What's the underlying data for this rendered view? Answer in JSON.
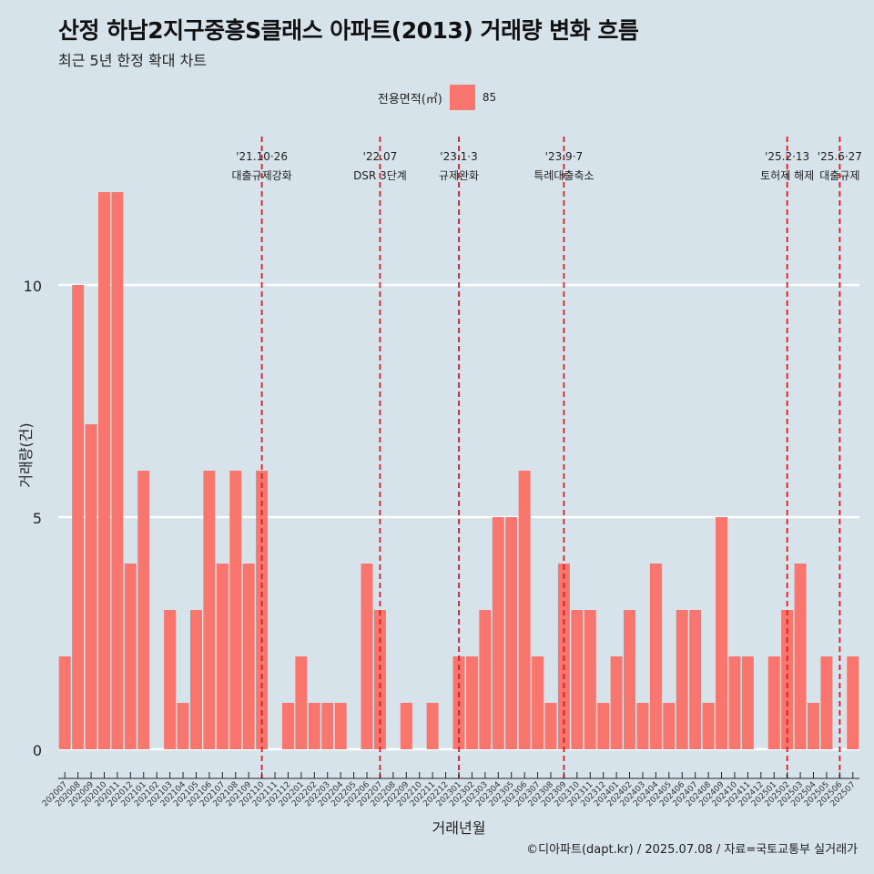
{
  "title": "산정 하남2지구중흥S클래스 아파트(2013) 거래량 변화 흐름",
  "subtitle": "최근 5년 한정 확대 차트",
  "legend": {
    "title": "전용면적(㎡)",
    "label": "85",
    "color": "#f8766d"
  },
  "caption": "©디아파트(dapt.kr) / 2025.07.08 / 자료=국토교통부 실거래가",
  "colors": {
    "background": "#d6e3eb",
    "bar": "#f8766d",
    "event_line": "#e3181d"
  },
  "chart_data": {
    "type": "bar",
    "xlabel": "거래년월",
    "ylabel": "거래량(건)",
    "ylim": [
      0,
      12
    ],
    "yticks": [
      0,
      5,
      10
    ],
    "grid": true,
    "legend_position": "top",
    "categories": [
      "202007",
      "202008",
      "202009",
      "202010",
      "202011",
      "202012",
      "202101",
      "202102",
      "202103",
      "202104",
      "202105",
      "202106",
      "202107",
      "202108",
      "202109",
      "202110",
      "202111",
      "202112",
      "202201",
      "202202",
      "202203",
      "202204",
      "202205",
      "202206",
      "202207",
      "202208",
      "202209",
      "202210",
      "202211",
      "202212",
      "202301",
      "202302",
      "202303",
      "202304",
      "202305",
      "202306",
      "202307",
      "202308",
      "202309",
      "202310",
      "202311",
      "202312",
      "202401",
      "202402",
      "202403",
      "202404",
      "202405",
      "202406",
      "202407",
      "202408",
      "202409",
      "202410",
      "202411",
      "202412",
      "202501",
      "202502",
      "202503",
      "202504",
      "202505",
      "202506",
      "202507"
    ],
    "series": [
      {
        "name": "85",
        "values": [
          2,
          10,
          7,
          12,
          12,
          4,
          6,
          0,
          3,
          1,
          3,
          6,
          4,
          6,
          4,
          6,
          0,
          1,
          2,
          1,
          1,
          1,
          0,
          4,
          3,
          0,
          1,
          0,
          1,
          0,
          2,
          2,
          3,
          5,
          5,
          6,
          2,
          1,
          4,
          3,
          3,
          1,
          2,
          3,
          1,
          4,
          1,
          3,
          3,
          1,
          5,
          2,
          2,
          0,
          2,
          3,
          4,
          1,
          2,
          0,
          2
        ]
      }
    ],
    "annotations": [
      {
        "category": "202110",
        "line1": "'21.10·26",
        "line2": "대출규제강화"
      },
      {
        "category": "202207",
        "line1": "'22.07",
        "line2": "DSR 3단계"
      },
      {
        "category": "202301",
        "line1": "'23.1·3",
        "line2": "규제완화"
      },
      {
        "category": "202309",
        "line1": "'23.9·7",
        "line2": "특례대출축소"
      },
      {
        "category": "202502",
        "line1": "'25.2·13",
        "line2": "토허제 해제"
      },
      {
        "category": "202506",
        "line1": "'25.6·27",
        "line2": "대출규제"
      }
    ]
  }
}
